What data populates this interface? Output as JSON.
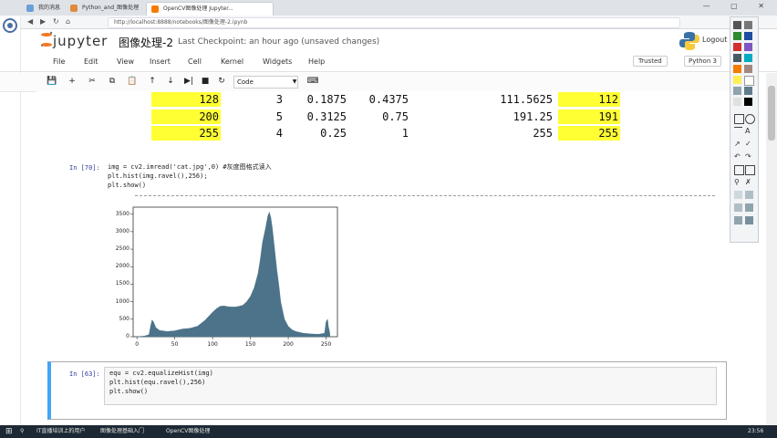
{
  "browser": {
    "tabs": [
      "我的消息",
      "Python_and_图像处理",
      "OpenCV图像处理 Jupyter..."
    ],
    "url": "http://localhost:8888/notebooks/图像处理-2.ipynb",
    "window_controls": "— ▢ ✕"
  },
  "header": {
    "logo_text": "jupyter",
    "notebook_title": "图像处理-2",
    "checkpoint": "Last Checkpoint: an hour ago (unsaved changes)",
    "logout": "Logout"
  },
  "menubar": {
    "items": [
      "File",
      "Edit",
      "View",
      "Insert",
      "Cell",
      "Kernel",
      "Widgets",
      "Help"
    ],
    "trusted": "Trusted",
    "kernel": "Python 3"
  },
  "toolbar": {
    "buttons": [
      "save-icon",
      "plus-icon",
      "cut-icon",
      "copy-icon",
      "paste-icon",
      "arrow-up-icon",
      "arrow-down-icon",
      "step-forward-icon",
      "stop-icon",
      "refresh-icon",
      "fast-forward-icon"
    ],
    "cell_type": "Code"
  },
  "table": {
    "rows": [
      [
        "128",
        "3",
        "0.1875",
        "0.4375",
        "111.5625",
        "112"
      ],
      [
        "200",
        "5",
        "0.3125",
        "0.75",
        "191.25",
        "191"
      ],
      [
        "255",
        "4",
        "0.25",
        "1",
        "255",
        "255"
      ]
    ],
    "highlight_color": "#ffff33"
  },
  "cell_70": {
    "prompt": "In [70]:",
    "lines": [
      "img = cv2.imread('cat.jpg',0) #灰度图格式读入",
      "plt.hist(img.ravel(),256);",
      "plt.show()"
    ]
  },
  "cell_63": {
    "prompt": "In [63]:",
    "lines": [
      "equ = cv2.equalizeHist(img)",
      "plt.hist(equ.ravel(),256)",
      "plt.show()"
    ]
  },
  "chart_data": {
    "type": "area",
    "title": "",
    "xlabel": "",
    "ylabel": "",
    "x_ticks": [
      "0",
      "50",
      "100",
      "150",
      "200",
      "250"
    ],
    "y_ticks": [
      "0",
      "500",
      "1000",
      "1500",
      "2000",
      "2500",
      "3000",
      "3500"
    ],
    "xlim": [
      -5,
      265
    ],
    "ylim": [
      0,
      3700
    ],
    "color": "#4c7389",
    "x": [
      0,
      10,
      16,
      18,
      20,
      22,
      25,
      30,
      40,
      50,
      60,
      70,
      80,
      90,
      100,
      105,
      110,
      115,
      120,
      125,
      130,
      135,
      140,
      145,
      150,
      155,
      160,
      163,
      166,
      170,
      173,
      175,
      177,
      179,
      180,
      182,
      185,
      188,
      190,
      193,
      195,
      200,
      205,
      210,
      220,
      230,
      240,
      248,
      250,
      252,
      253,
      255
    ],
    "y": [
      0,
      20,
      60,
      300,
      480,
      420,
      260,
      180,
      150,
      170,
      220,
      240,
      300,
      470,
      700,
      800,
      870,
      880,
      860,
      850,
      850,
      870,
      900,
      1000,
      1150,
      1400,
      1800,
      2200,
      2700,
      3100,
      3450,
      3560,
      3400,
      3100,
      2900,
      2500,
      1900,
      1400,
      1000,
      700,
      500,
      300,
      200,
      150,
      100,
      80,
      70,
      100,
      430,
      500,
      300,
      100
    ]
  },
  "taskbar": {
    "items": [
      "IT直播培训上的用户",
      "图像处理基础入门",
      "OpenCV图像处理"
    ],
    "time": "23:56"
  }
}
